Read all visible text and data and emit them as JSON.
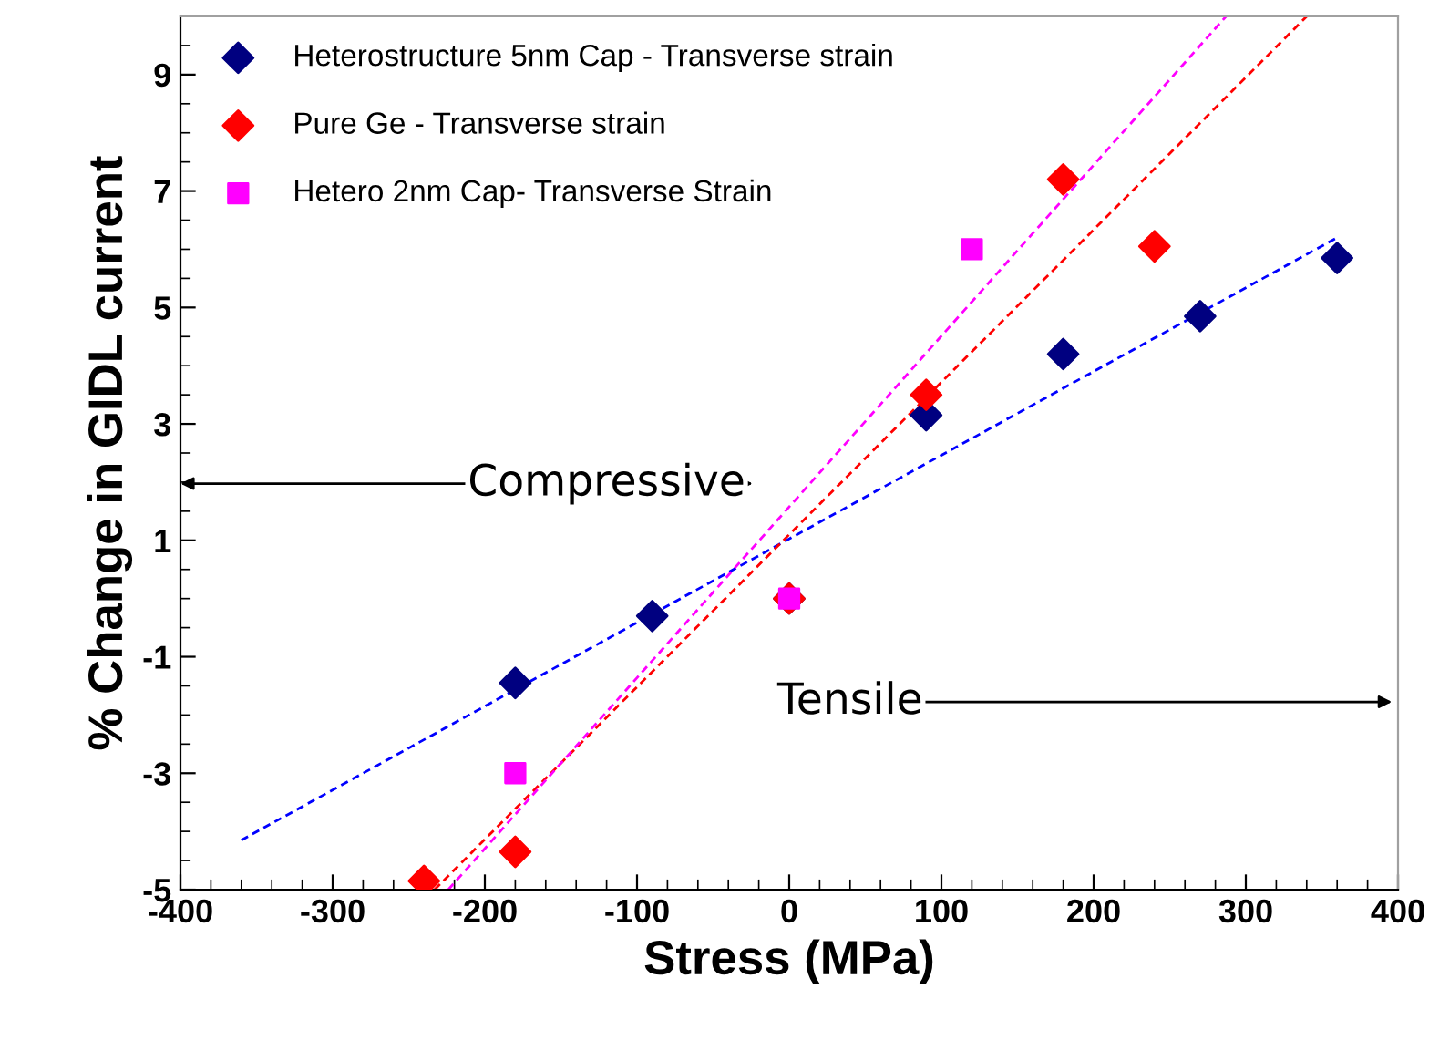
{
  "chart_data": {
    "type": "scatter",
    "xlabel": "Stress (MPa)",
    "ylabel": "% Change in GIDL current",
    "series": [
      {
        "name": "Heterostructure 5nm Cap - Transverse strain",
        "color": "#000080",
        "marker": "diamond",
        "x": [
          -180,
          -90,
          0,
          90,
          180,
          270,
          360
        ],
        "values": [
          -1.45,
          -0.3,
          0,
          3.15,
          4.2,
          4.85,
          5.85
        ]
      },
      {
        "name": "Pure Ge - Transverse strain",
        "color": "#ff0000",
        "marker": "diamond",
        "x": [
          -240,
          -180,
          0,
          90,
          180,
          240
        ],
        "values": [
          -4.85,
          -4.35,
          0,
          3.5,
          7.2,
          6.05
        ]
      },
      {
        "name": "Hetero 2nm Cap- Transverse Strain",
        "color": "#ff00ff",
        "marker": "square",
        "x": [
          -180,
          0,
          120
        ],
        "values": [
          -3.0,
          0,
          6.0
        ]
      },
      {
        "type": "line",
        "color": "#0000ff",
        "line_style": "dashed",
        "x": [
          -360,
          360
        ],
        "values": [
          -4.15,
          6.2
        ]
      },
      {
        "type": "line",
        "color": "#ff0000",
        "line_style": "dashed",
        "x": [
          -233,
          340
        ],
        "values": [
          -5,
          10
        ]
      },
      {
        "type": "line",
        "color": "#ff00ff",
        "line_style": "dashed",
        "x": [
          -224,
          287
        ],
        "values": [
          -5,
          10
        ]
      }
    ],
    "annotations": [
      "Compressive",
      "Tensile"
    ],
    "xlim": [
      -400,
      400
    ],
    "xticks": [
      -400,
      -300,
      -200,
      -100,
      0,
      100,
      200,
      300,
      400
    ],
    "ylim": [
      -5,
      10
    ],
    "yticks": [
      -5,
      -3,
      -1,
      1,
      3,
      5,
      7,
      9
    ],
    "grid": false,
    "legend": "top left"
  }
}
